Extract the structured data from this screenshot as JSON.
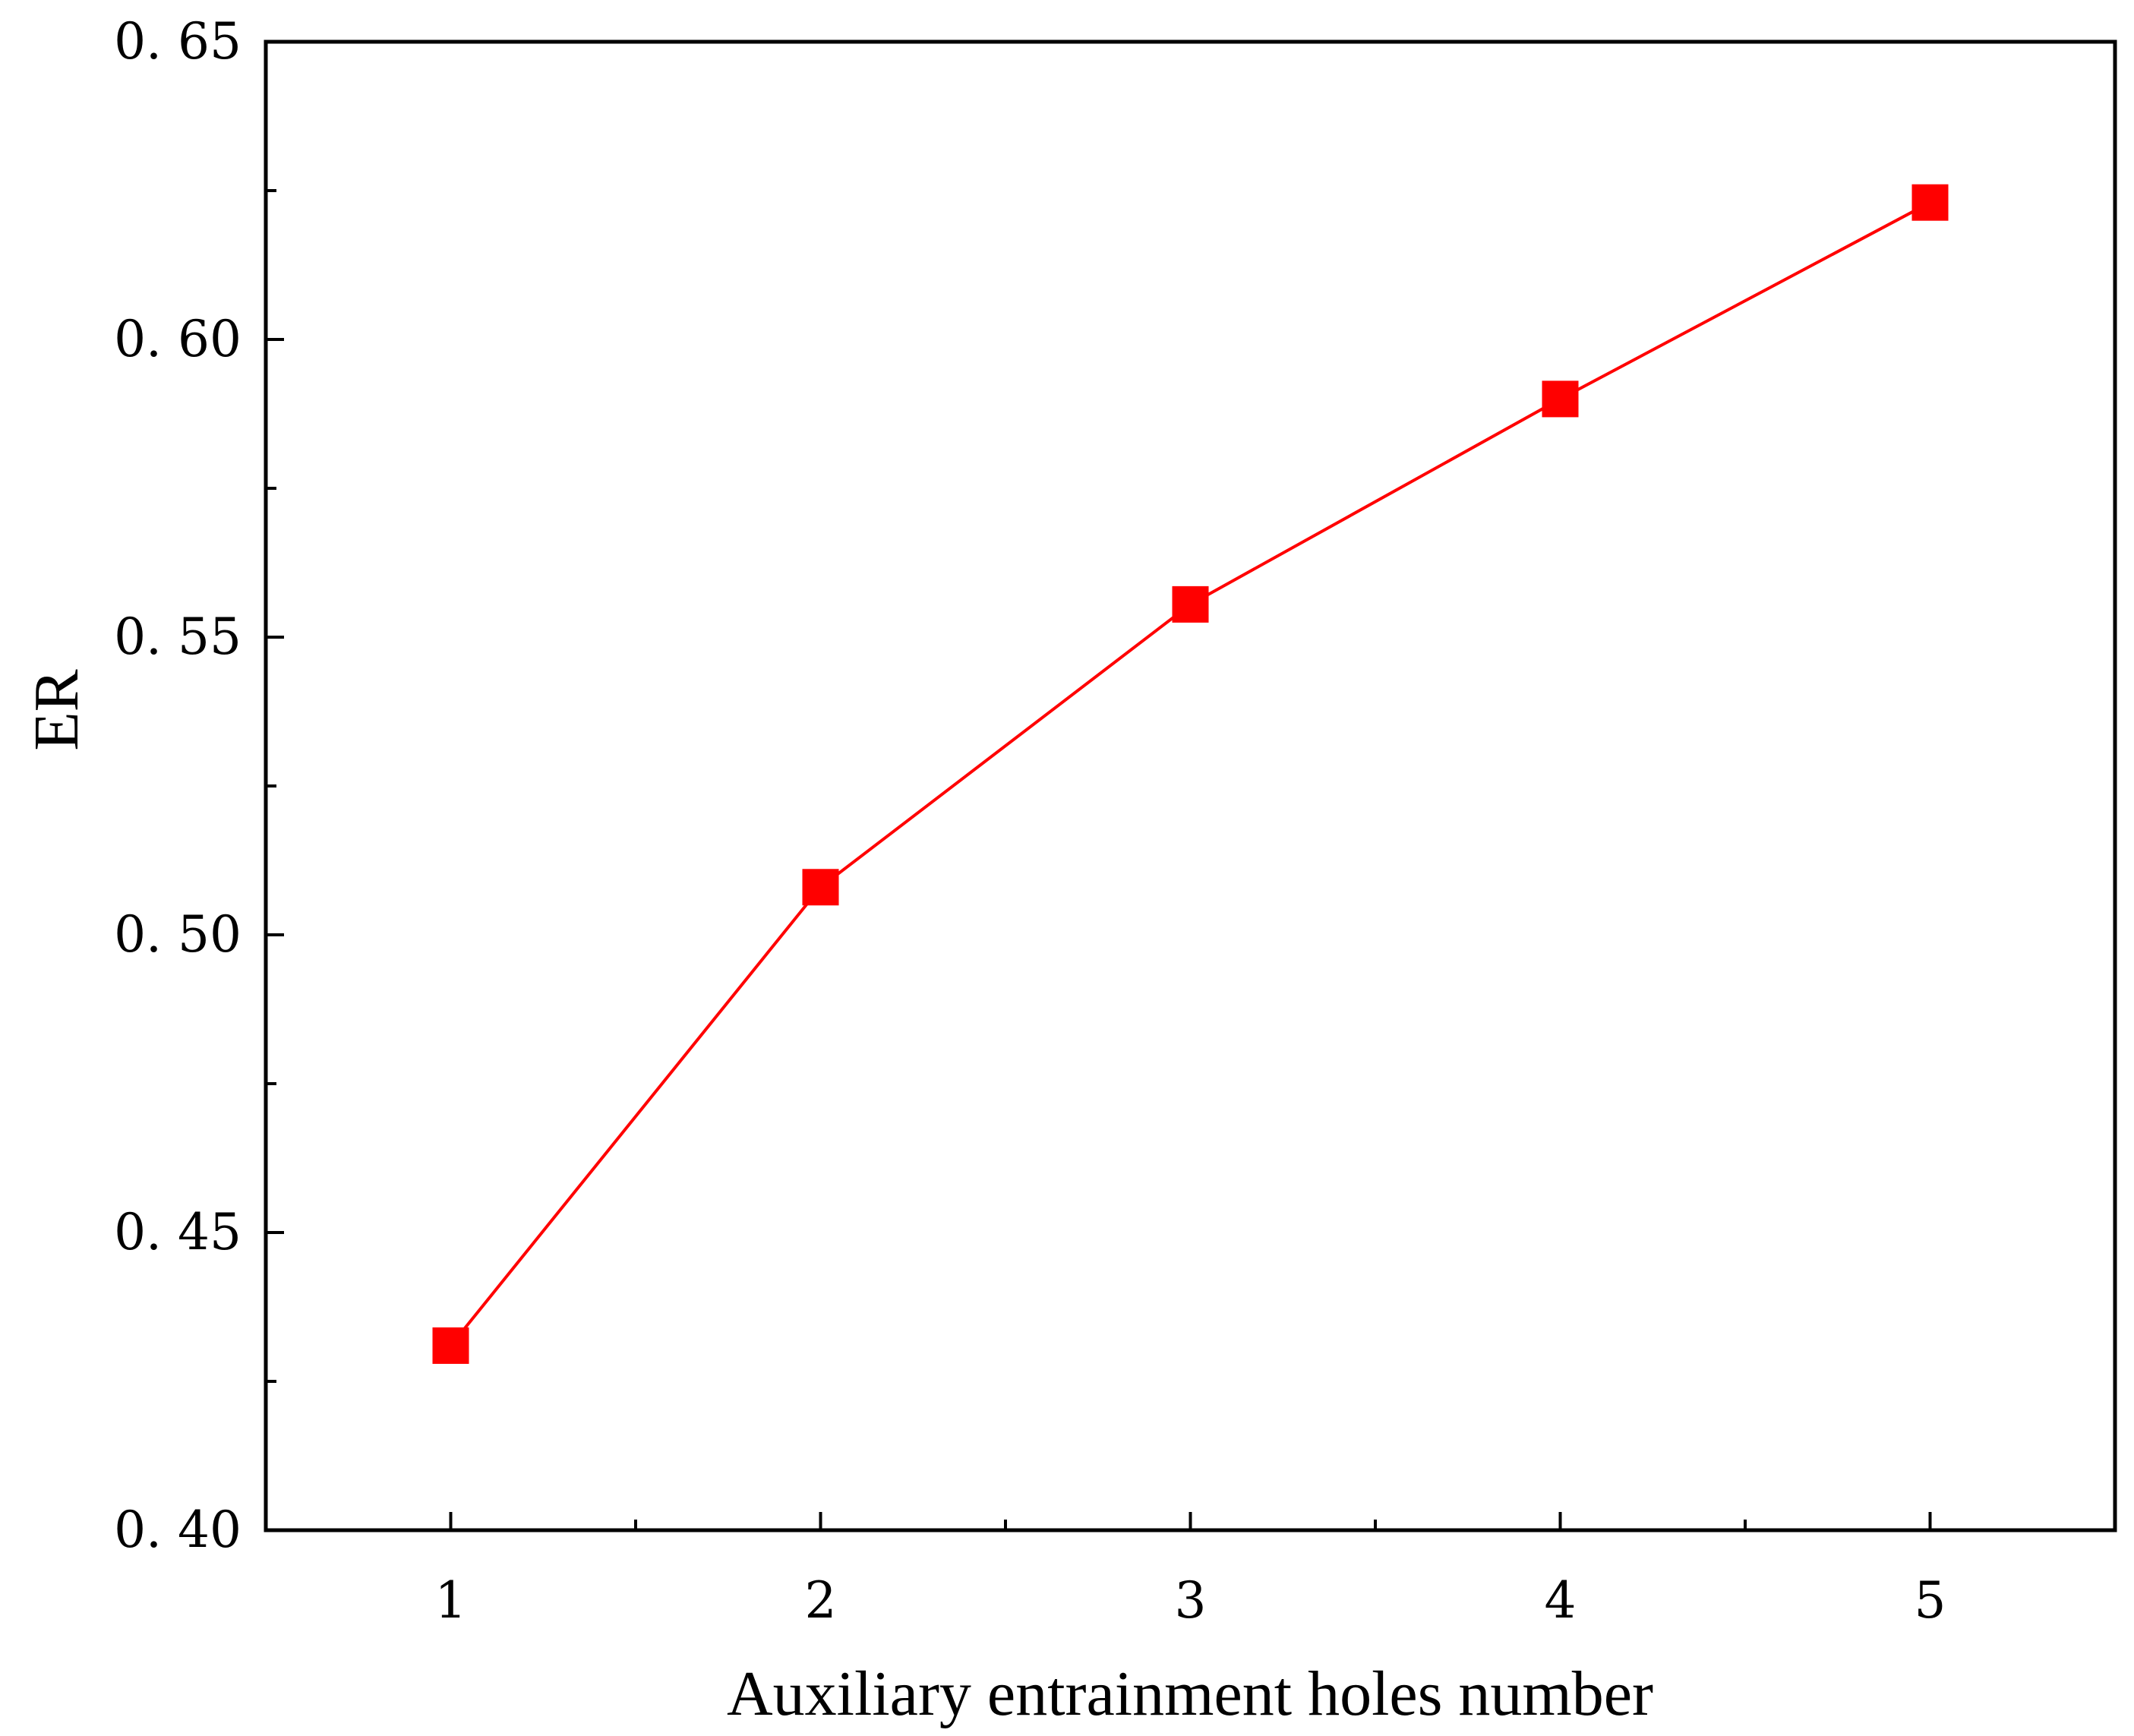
{
  "chart_data": {
    "type": "line",
    "xlabel": "Auxiliary entrainment holes number",
    "ylabel": "ER",
    "xlim": [
      0.5,
      5.5
    ],
    "ylim": [
      0.4,
      0.65
    ],
    "x_ticks": [
      1,
      2,
      3,
      4,
      5
    ],
    "x_tick_labels": [
      "1",
      "2",
      "3",
      "4",
      "5"
    ],
    "x_minor_ticks": [
      1.5,
      2.5,
      3.5,
      4.5
    ],
    "y_ticks": [
      0.4,
      0.45,
      0.5,
      0.55,
      0.6,
      0.65
    ],
    "y_tick_labels": [
      "0. 40",
      "0. 45",
      "0. 50",
      "0. 55",
      "0. 60",
      "0. 65"
    ],
    "y_minor_ticks": [
      0.425,
      0.475,
      0.525,
      0.575,
      0.625
    ],
    "grid": false,
    "series": [
      {
        "name": "ER",
        "color": "#ff0000",
        "marker": "square",
        "x": [
          1,
          2,
          3,
          4,
          5
        ],
        "y": [
          0.431,
          0.508,
          0.5555,
          0.59,
          0.623
        ]
      }
    ]
  }
}
